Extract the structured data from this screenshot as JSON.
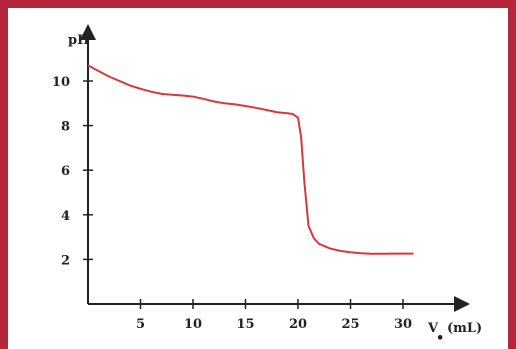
{
  "chart_data": {
    "type": "line",
    "ylabel": "pH",
    "xlabel_main": "V",
    "xlabel_sub": "•",
    "xlabel_unit": "(mL)",
    "xlim": [
      0,
      32.5
    ],
    "ylim": [
      0,
      12
    ],
    "xticks": [
      5,
      10,
      15,
      20,
      25,
      30
    ],
    "yticks": [
      2,
      4,
      6,
      8,
      10
    ],
    "grid": false,
    "series": [
      {
        "color": "#d43a3a",
        "x": [
          0,
          1,
          2,
          3,
          4,
          5,
          6,
          7,
          8,
          9,
          10,
          11,
          12,
          13,
          14,
          15,
          16,
          17,
          18,
          19,
          19.5,
          20,
          20.3,
          20.6,
          21,
          21.5,
          22,
          23,
          24,
          25,
          26,
          27,
          28,
          29,
          30,
          31
        ],
        "y": [
          10.7,
          10.45,
          10.2,
          10.0,
          9.8,
          9.65,
          9.52,
          9.42,
          9.38,
          9.35,
          9.3,
          9.2,
          9.08,
          9.0,
          8.95,
          8.88,
          8.8,
          8.7,
          8.6,
          8.55,
          8.52,
          8.35,
          7.5,
          5.5,
          3.5,
          2.95,
          2.7,
          2.5,
          2.38,
          2.32,
          2.28,
          2.25,
          2.25,
          2.26,
          2.26,
          2.26
        ]
      }
    ]
  }
}
